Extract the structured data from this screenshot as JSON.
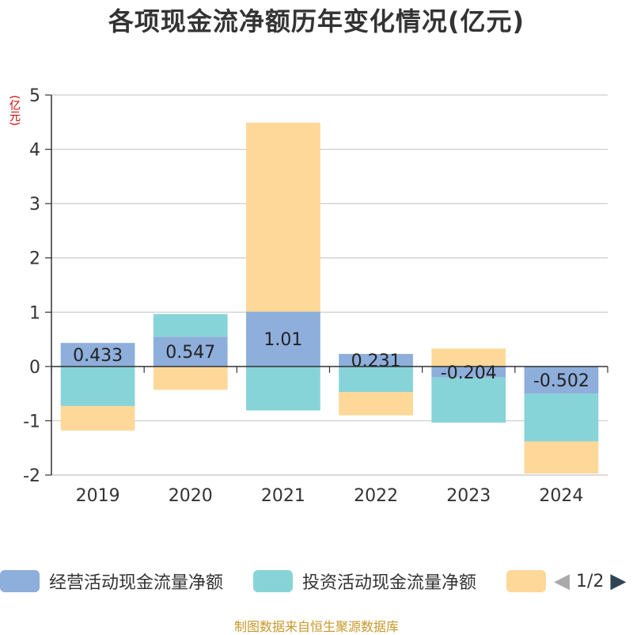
{
  "title": "各项现金流净额历年变化情况(亿元)",
  "unit": "(亿元)",
  "source": "制图数据来自恒生聚源数据库",
  "legend": {
    "items": [
      {
        "label": "经营活动现金流量净额",
        "color": "#8eaedb"
      },
      {
        "label": "投资活动现金流量净额",
        "color": "#87d4d8"
      },
      {
        "label": "",
        "color": "#fed899"
      }
    ],
    "page": "1/2"
  },
  "chart_data": {
    "type": "bar",
    "stacked": true,
    "categories": [
      "2019",
      "2020",
      "2021",
      "2022",
      "2023",
      "2024"
    ],
    "ylim": [
      -2,
      5
    ],
    "yticks": [
      -2,
      -1,
      0,
      1,
      2,
      3,
      4,
      5
    ],
    "grid": true,
    "legend_position": "bottom",
    "series": [
      {
        "name": "经营活动现金流量净额",
        "color": "#8eaedb",
        "values": [
          0.433,
          0.547,
          1.01,
          0.231,
          -0.204,
          -0.502
        ],
        "labels": [
          "0.433",
          "0.547",
          "1.01",
          "0.231",
          "-0.204",
          "-0.502"
        ]
      },
      {
        "name": "投资活动现金流量净额",
        "color": "#87d4d8",
        "values": [
          -0.73,
          0.42,
          -0.81,
          -0.47,
          -0.83,
          -0.88
        ]
      },
      {
        "color": "#fed899",
        "values": [
          -0.45,
          -0.43,
          3.48,
          -0.43,
          0.33,
          -0.59
        ]
      }
    ]
  }
}
